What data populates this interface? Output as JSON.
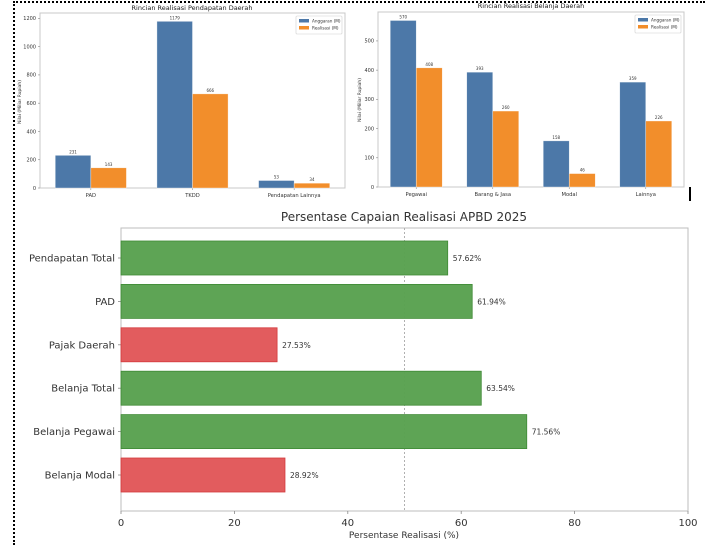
{
  "chart_data": [
    {
      "id": "pendapatan",
      "type": "bar",
      "title": "Rincian Realisasi Pendapatan Daerah",
      "xlabel": "",
      "ylabel": "Nilai (Miliar Rupiah)",
      "categories": [
        "PAD",
        "TKDD",
        "Pendapatan Lainnya"
      ],
      "series": [
        {
          "name": "Anggaran (M)",
          "color": "#4c78a8",
          "values": [
            231,
            1179,
            53
          ]
        },
        {
          "name": "Realisasi (M)",
          "color": "#f28e2b",
          "values": [
            143,
            666,
            34
          ]
        }
      ],
      "yticks": [
        0,
        200,
        400,
        600,
        800,
        1000,
        1200
      ],
      "ylim": [
        0,
        1238
      ],
      "legend": "top-right",
      "grid": false
    },
    {
      "id": "belanja",
      "type": "bar",
      "title": "Rincian Realisasi Belanja Daerah",
      "xlabel": "",
      "ylabel": "Nilai (Miliar Rupiah)",
      "categories": [
        "Pegawai",
        "Barang & Jasa",
        "Modal",
        "Lainnya"
      ],
      "series": [
        {
          "name": "Anggaran (M)",
          "color": "#4c78a8",
          "values": [
            570,
            393,
            158,
            359
          ]
        },
        {
          "name": "Realisasi (M)",
          "color": "#f28e2b",
          "values": [
            408,
            260,
            46,
            226
          ]
        }
      ],
      "yticks": [
        0,
        100,
        200,
        300,
        400,
        500
      ],
      "ylim": [
        0,
        599
      ],
      "legend": "top-right",
      "grid": false
    },
    {
      "id": "persentase",
      "type": "bar",
      "orientation": "horizontal",
      "title": "Persentase Capaian Realisasi APBD 2025",
      "xlabel": "Persentase Realisasi (%)",
      "ylabel": "",
      "categories": [
        "Pendapatan Total",
        "PAD",
        "Pajak Daerah",
        "Belanja Total",
        "Belanja Pegawai",
        "Belanja Modal"
      ],
      "values": [
        57.62,
        61.94,
        27.53,
        63.54,
        71.56,
        28.92
      ],
      "labels": [
        "57.62%",
        "61.94%",
        "27.53%",
        "63.54%",
        "71.56%",
        "28.92%"
      ],
      "colors": [
        "#59a14f",
        "#59a14f",
        "#e15759",
        "#59a14f",
        "#59a14f",
        "#e15759"
      ],
      "reference_line": 50,
      "xticks": [
        0,
        20,
        40,
        60,
        80,
        100
      ],
      "xlim": [
        0,
        100
      ],
      "grid": false
    }
  ]
}
